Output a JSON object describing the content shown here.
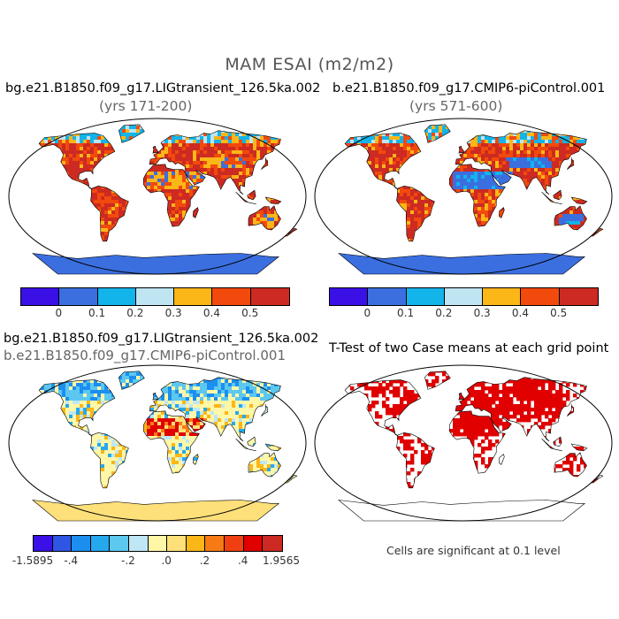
{
  "figure": {
    "title": "MAM ESAI (m2/m2)"
  },
  "panels": [
    {
      "case": "bg.e21.B1850.f09_g17.LIGtransient_126.5ka.002",
      "years": "(yrs 171-200)"
    },
    {
      "case": "b.e21.B1850.f09_g17.CMIP6-piControl.001",
      "years": "(yrs 571-600)"
    },
    {
      "case": "bg.e21.B1850.f09_g17.LIGtransient_126.5ka.002",
      "years": "b.e21.B1850.f09_g17.CMIP6-piControl.001"
    },
    {
      "case": "T-Test of two Case means at each grid point",
      "years": ""
    }
  ],
  "colorbar_top": {
    "colors": [
      "#3a10e6",
      "#3b6fe0",
      "#12b4ea",
      "#bfe4f2",
      "#fbb617",
      "#f24a0c",
      "#cc2a22"
    ],
    "tick_labels": [
      "0",
      "0.1",
      "0.2",
      "0.3",
      "0.4",
      "0.5"
    ]
  },
  "colorbar_diff": {
    "colors": [
      "#3a10e6",
      "#2f55e4",
      "#1c8ef0",
      "#26a8ee",
      "#5cc8f0",
      "#bfe6f5",
      "#fff7a8",
      "#fde07a",
      "#fbb617",
      "#f77a14",
      "#f04012",
      "#e00000",
      "#cc2a22"
    ],
    "tick_labels": [
      "-1.5895",
      "-.4",
      "-.2",
      ".0",
      ".2",
      ".4",
      "1.9565"
    ]
  },
  "ttest": {
    "note": "Cells are significant at 0.1 level",
    "color": "#e00000"
  },
  "map_colors": {
    "ocean": "#ffffff",
    "outline": "#000000"
  }
}
